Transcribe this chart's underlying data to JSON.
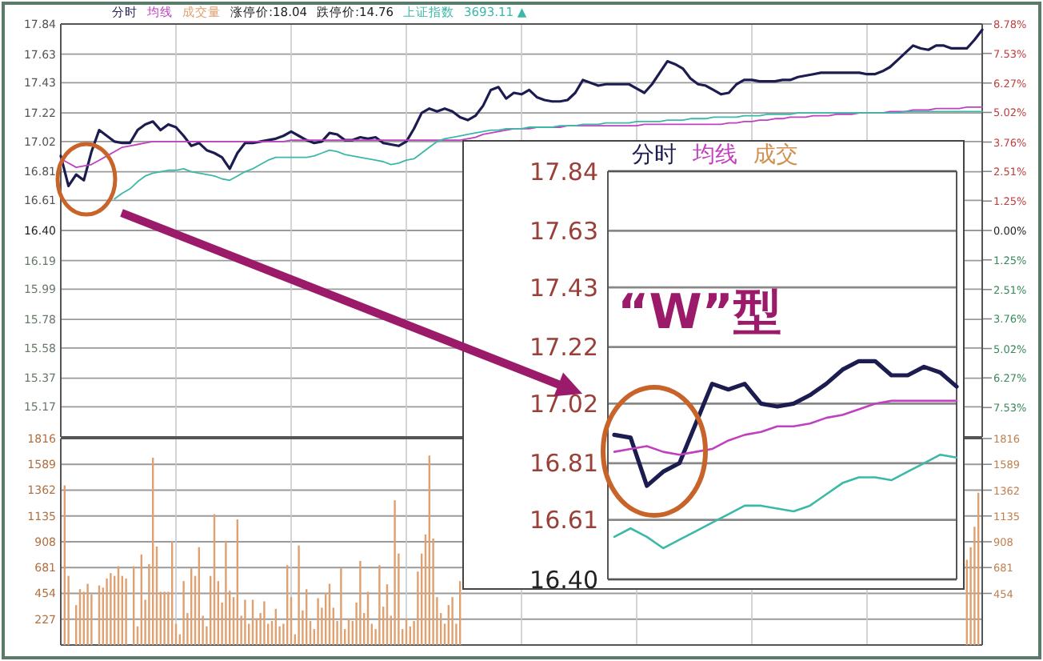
{
  "chart_data": [
    {
      "type": "line",
      "categories": [
        null,
        null,
        null,
        null,
        null,
        null,
        null,
        null,
        null,
        null,
        null,
        null,
        null,
        null,
        null,
        null,
        null,
        null,
        null,
        null,
        null,
        null,
        null,
        null,
        null,
        null,
        null,
        null,
        null,
        null,
        null,
        null,
        null,
        null,
        null,
        null,
        null,
        null,
        null,
        null,
        null,
        null,
        null,
        null,
        null,
        null,
        null,
        null,
        null,
        null,
        null,
        null,
        null,
        null,
        null,
        null,
        null,
        null,
        null,
        null,
        null,
        null,
        null,
        null,
        null,
        null,
        null,
        null,
        null,
        null,
        null,
        null,
        null,
        null,
        null,
        null,
        null,
        null,
        null,
        null,
        null,
        null,
        null,
        null,
        null,
        null,
        null,
        null,
        null,
        null,
        null,
        null,
        null,
        null,
        null,
        null,
        null,
        null,
        null,
        null,
        null,
        null,
        null,
        null,
        null,
        null,
        null,
        null,
        null,
        null,
        null,
        null,
        null,
        null,
        null,
        null,
        null,
        null,
        null,
        null,
        null
      ],
      "ylim": [
        14.96,
        17.84
      ],
      "yticks": [
        17.84,
        17.63,
        17.43,
        17.22,
        17.02,
        16.81,
        16.61,
        {
          "value": 16.4,
          "label": "16.40"
        },
        16.19,
        15.99,
        15.78,
        15.58,
        15.37,
        15.17
      ],
      "y2lim": [
        -8.78,
        8.78
      ],
      "y2ticks": [
        {
          "value": 8.78,
          "label": "8.78%"
        },
        {
          "value": 7.53,
          "label": "7.53%"
        },
        {
          "value": 6.27,
          "label": "6.27%"
        },
        {
          "value": 5.02,
          "label": "5.02%"
        },
        {
          "value": 3.76,
          "label": "3.76%"
        },
        {
          "value": 2.51,
          "label": "2.51%"
        },
        {
          "value": 1.25,
          "label": "1.25%"
        },
        {
          "value": 0,
          "label": "0.00%"
        },
        {
          "value": -1.25,
          "label": "1.25%"
        },
        {
          "value": -2.51,
          "label": "2.51%"
        },
        {
          "value": -3.76,
          "label": "3.76%"
        },
        {
          "value": -5.02,
          "label": "5.02%"
        },
        {
          "value": -6.27,
          "label": "6.27%"
        },
        {
          "value": -7.53,
          "label": "7.53%"
        }
      ],
      "grid": true,
      "annotations": [
        "涨停价:18.04",
        "跌停价:14.76",
        "3693.11 ▲"
      ],
      "series": [
        {
          "name": "分时",
          "color": "#1c1c50",
          "values": [
            16.92,
            16.71,
            16.79,
            16.75,
            16.95,
            17.1,
            17.06,
            17.02,
            17.01,
            17.01,
            17.1,
            17.14,
            17.16,
            17.1,
            17.14,
            17.12,
            17.06,
            16.99,
            17.01,
            16.96,
            16.94,
            16.91,
            16.83,
            16.94,
            17.01,
            17.01,
            17.02,
            17.03,
            17.04,
            17.06,
            17.09,
            17.06,
            17.03,
            17.01,
            17.02,
            17.08,
            17.07,
            17.03,
            17.03,
            17.05,
            17.04,
            17.05,
            17.01,
            17.0,
            16.99,
            17.02,
            17.11,
            17.22,
            17.25,
            17.23,
            17.25,
            17.23,
            17.19,
            17.17,
            17.2,
            17.27,
            17.38,
            17.4,
            17.32,
            17.36,
            17.35,
            17.38,
            17.33,
            17.31,
            17.3,
            17.3,
            17.31,
            17.36,
            17.45,
            17.43,
            17.41,
            17.42,
            17.42,
            17.42,
            17.42,
            17.39,
            17.36,
            17.42,
            17.5,
            17.58,
            17.56,
            17.53,
            17.46,
            17.42,
            17.41,
            17.38,
            17.35,
            17.36,
            17.42,
            17.45,
            17.45,
            17.44,
            17.44,
            17.44,
            17.45,
            17.45,
            17.47,
            17.48,
            17.49,
            17.5,
            17.5,
            17.5,
            17.5,
            17.5,
            17.5,
            17.49,
            17.49,
            17.51,
            17.54,
            17.59,
            17.64,
            17.69,
            17.67,
            17.66,
            17.69,
            17.69,
            17.67,
            17.67,
            17.67,
            17.73,
            17.8
          ]
        },
        {
          "name": "均线",
          "color": "#c040c0",
          "values": [
            16.9,
            16.87,
            16.84,
            16.85,
            16.86,
            16.89,
            16.92,
            16.95,
            16.98,
            16.99,
            17.0,
            17.01,
            17.02,
            17.02,
            17.02,
            17.02,
            17.02,
            17.02,
            17.02,
            17.02,
            17.02,
            17.02,
            17.02,
            17.02,
            17.02,
            17.02,
            17.02,
            17.02,
            17.02,
            17.02,
            17.03,
            17.03,
            17.03,
            17.03,
            17.03,
            17.03,
            17.03,
            17.03,
            17.03,
            17.03,
            17.03,
            17.03,
            17.03,
            17.03,
            17.03,
            17.03,
            17.03,
            17.03,
            17.03,
            17.03,
            17.03,
            17.03,
            17.03,
            17.04,
            17.05,
            17.07,
            17.08,
            17.09,
            17.1,
            17.11,
            17.11,
            17.11,
            17.12,
            17.12,
            17.12,
            17.12,
            17.13,
            17.13,
            17.13,
            17.13,
            17.13,
            17.13,
            17.13,
            17.13,
            17.13,
            17.13,
            17.14,
            17.14,
            17.14,
            17.14,
            17.14,
            17.14,
            17.14,
            17.14,
            17.14,
            17.14,
            17.14,
            17.15,
            17.15,
            17.16,
            17.16,
            17.17,
            17.17,
            17.18,
            17.18,
            17.19,
            17.19,
            17.19,
            17.2,
            17.2,
            17.2,
            17.21,
            17.21,
            17.21,
            17.22,
            17.22,
            17.22,
            17.22,
            17.23,
            17.23,
            17.23,
            17.24,
            17.24,
            17.24,
            17.25,
            17.25,
            17.25,
            17.25,
            17.26,
            17.26,
            17.26
          ]
        },
        {
          "name": "上证指数",
          "color": "#3cb8a8",
          "values": [
            null,
            null,
            null,
            null,
            null,
            null,
            null,
            16.62,
            16.66,
            16.69,
            16.74,
            16.78,
            16.8,
            16.81,
            16.82,
            16.82,
            16.83,
            16.81,
            16.8,
            16.79,
            16.78,
            16.76,
            16.75,
            16.78,
            16.81,
            16.83,
            16.86,
            16.89,
            16.91,
            16.91,
            16.91,
            16.91,
            16.91,
            16.92,
            16.94,
            16.96,
            16.95,
            16.93,
            16.92,
            16.91,
            16.9,
            16.89,
            16.88,
            16.86,
            16.87,
            16.89,
            16.9,
            16.94,
            16.98,
            17.02,
            17.04,
            17.05,
            17.06,
            17.07,
            17.08,
            17.09,
            17.1,
            17.1,
            17.11,
            17.11,
            17.11,
            17.12,
            17.12,
            17.12,
            17.12,
            17.13,
            17.13,
            17.13,
            17.14,
            17.14,
            17.14,
            17.15,
            17.15,
            17.15,
            17.15,
            17.16,
            17.16,
            17.16,
            17.16,
            17.17,
            17.17,
            17.17,
            17.18,
            17.18,
            17.18,
            17.19,
            17.19,
            17.19,
            17.19,
            17.2,
            17.2,
            17.2,
            17.21,
            17.21,
            17.21,
            17.21,
            17.22,
            17.22,
            17.22,
            17.22,
            17.22,
            17.22,
            17.22,
            17.22,
            17.22,
            17.22,
            17.22,
            17.22,
            17.22,
            17.22,
            17.23,
            17.23,
            17.23,
            17.23,
            17.23,
            17.23,
            17.23,
            17.23,
            17.23,
            17.23,
            17.23
          ]
        }
      ]
    },
    {
      "type": "bar",
      "categories": [
        null,
        null,
        null,
        null,
        null,
        null,
        null,
        null,
        null,
        null,
        null,
        null,
        null,
        null,
        null,
        null,
        null,
        null,
        null,
        null,
        null,
        null,
        null,
        null,
        null,
        null,
        null,
        null,
        null,
        null,
        null,
        null,
        null,
        null,
        null,
        null,
        null,
        null,
        null,
        null,
        null,
        null,
        null,
        null,
        null,
        null,
        null,
        null,
        null,
        null,
        null,
        null,
        null,
        null,
        null,
        null,
        null,
        null,
        null,
        null,
        null,
        null,
        null,
        null,
        null,
        null,
        null,
        null,
        null,
        null,
        null,
        null,
        null,
        null,
        null,
        null,
        null,
        null,
        null,
        null,
        null,
        null,
        null,
        null,
        null,
        null,
        null,
        null,
        null,
        null,
        null,
        null,
        null,
        null,
        null,
        null,
        null,
        null,
        null,
        null,
        null,
        null,
        null,
        null,
        null,
        null,
        null,
        null,
        null,
        null,
        null,
        null,
        null,
        null,
        null,
        null,
        null,
        null,
        null,
        null,
        null,
        null,
        null,
        null,
        null,
        null,
        null,
        null,
        null,
        null,
        null,
        null,
        null,
        null,
        null,
        null,
        null,
        null,
        null,
        null,
        null,
        null,
        null,
        null,
        null,
        null,
        null,
        null,
        null,
        null,
        null,
        null,
        null,
        null,
        null,
        null,
        null,
        null,
        null,
        null,
        null,
        null,
        null,
        null,
        null,
        null,
        null,
        null,
        null,
        null,
        null,
        null,
        null,
        null,
        null,
        null,
        null,
        null,
        null,
        null,
        null,
        null,
        null,
        null,
        null,
        null,
        null,
        null,
        null,
        null,
        null,
        null,
        null,
        null,
        null,
        null,
        null,
        null,
        null,
        null,
        null,
        null,
        null,
        null,
        null,
        null,
        null,
        null,
        null,
        null,
        null,
        null,
        null,
        null,
        null,
        null,
        null,
        null,
        null,
        null,
        null,
        null,
        null,
        null,
        null,
        null,
        null,
        null,
        null,
        null,
        null,
        null,
        null,
        null,
        null,
        null,
        null,
        null,
        null,
        null,
        null
      ],
      "ylim": [
        0,
        1816
      ],
      "yticks": [
        227,
        454,
        681,
        908,
        1135,
        1362,
        1589,
        1816
      ],
      "y2lim": [
        0,
        1816
      ],
      "y2ticks": [
        454,
        681,
        908,
        1135,
        1362,
        1589,
        1816
      ],
      "grid": true,
      "series": [
        {
          "name": "成交量",
          "color": "#e0a070",
          "values": [
            null,
            1404,
            608,
            null,
            351,
            491,
            468,
            538,
            445,
            null,
            524,
            505,
            585,
            632,
            608,
            693,
            608,
            585,
            null,
            693,
            164,
            796,
            398,
            711,
            1648,
            866,
            468,
            468,
            468,
            913,
            187,
            94,
            562,
            281,
            674,
            608,
            861,
            257,
            164,
            608,
            1151,
            562,
            374,
            917,
            477,
            421,
            1105,
            257,
            398,
            187,
            398,
            234,
            281,
            384,
            187,
            211,
            318,
            164,
            187,
            702,
            421,
            94,
            875,
            304,
            491,
            211,
            140,
            412,
            328,
            459,
            538,
            328,
            211,
            674,
            140,
            234,
            211,
            374,
            739,
            281,
            468,
            187,
            140,
            702,
            337,
            534,
            257,
            1273,
            805,
            140,
            234,
            164,
            211,
            646,
            805,
            973,
            1666,
            936,
            421,
            281,
            187,
            351,
            421,
            187,
            562,
            null,
            null,
            null,
            null,
            null,
            null,
            null,
            null,
            null,
            null,
            null,
            null,
            null,
            null,
            null,
            null,
            null,
            null,
            null,
            null,
            null,
            null,
            null,
            null,
            null,
            null,
            null,
            null,
            null,
            null,
            null,
            null,
            null,
            null,
            null,
            null,
            null,
            null,
            null,
            null,
            null,
            null,
            null,
            null,
            null,
            null,
            null,
            null,
            null,
            null,
            null,
            null,
            null,
            null,
            null,
            null,
            null,
            null,
            null,
            null,
            null,
            null,
            null,
            null,
            null,
            null,
            null,
            null,
            null,
            null,
            null,
            null,
            null,
            null,
            null,
            null,
            null,
            null,
            null,
            null,
            null,
            null,
            null,
            null,
            null,
            null,
            null,
            null,
            null,
            null,
            null,
            null,
            null,
            null,
            null,
            null,
            null,
            null,
            null,
            null,
            null,
            null,
            null,
            null,
            null,
            null,
            null,
            null,
            null,
            null,
            null,
            null,
            null,
            null,
            null,
            null,
            null,
            null,
            null,
            null,
            null,
            null,
            null,
            null,
            null,
            null,
            null,
            null,
            null,
            null,
            null,
            750,
            860,
            1040,
            1340,
            null
          ]
        }
      ]
    },
    {
      "type": "line",
      "categories": [
        null,
        null,
        null,
        null,
        null,
        null,
        null,
        null,
        null,
        null,
        null,
        null,
        null,
        null,
        null,
        null,
        null,
        null,
        null,
        null,
        null,
        null
      ],
      "ylim": [
        16.4,
        17.84
      ],
      "yticks": [
        17.84,
        17.63,
        17.43,
        17.22,
        17.02,
        16.81,
        16.61,
        {
          "value": 16.4,
          "label": "16.40"
        }
      ],
      "grid": "y",
      "annotations": [
        "成交",
        "“W”型"
      ],
      "series": [
        {
          "name": "分时",
          "color": "#1c1c50",
          "values": [
            16.91,
            16.9,
            16.73,
            16.78,
            16.81,
            16.95,
            17.09,
            17.07,
            17.09,
            17.02,
            17.01,
            17.02,
            17.05,
            17.09,
            17.14,
            17.17,
            17.17,
            17.12,
            17.12,
            17.15,
            17.13,
            17.08
          ]
        },
        {
          "name": "均线",
          "color": "#c040c0",
          "values": [
            16.85,
            16.86,
            16.87,
            16.85,
            16.84,
            16.85,
            16.86,
            16.89,
            16.91,
            16.92,
            16.94,
            16.94,
            16.95,
            16.97,
            16.98,
            17.0,
            17.02,
            17.03,
            17.03,
            17.03,
            17.03,
            17.03
          ]
        },
        {
          "color": "#3cb8a8",
          "values": [
            16.55,
            16.58,
            16.55,
            16.51,
            16.54,
            16.57,
            16.6,
            16.63,
            16.66,
            16.66,
            16.65,
            16.64,
            16.66,
            16.7,
            16.74,
            16.76,
            16.76,
            16.75,
            16.78,
            16.81,
            16.84,
            16.83
          ]
        }
      ]
    }
  ]
}
